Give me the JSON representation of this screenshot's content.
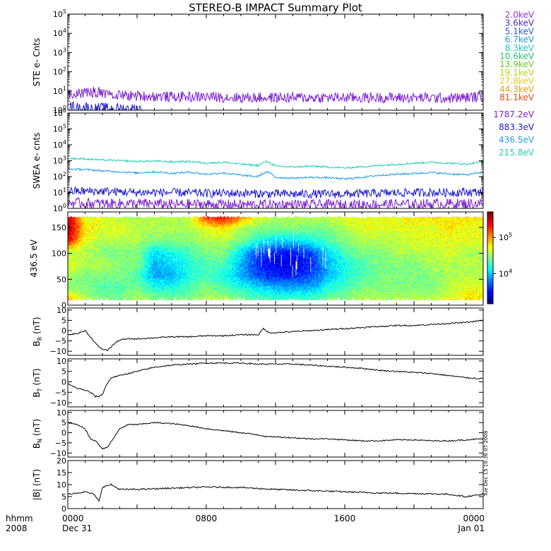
{
  "title": "STEREO-B IMPACT Summary Plot",
  "side_stamp": "Tue Dec 15 10:36:07 2008",
  "time_axis": {
    "row1_label": "hhmm",
    "row2_label": "2008",
    "ticks": [
      {
        "hour": 0,
        "top": "0000",
        "bottom": "Dec 31"
      },
      {
        "hour": 8,
        "top": "0800",
        "bottom": ""
      },
      {
        "hour": 16,
        "top": "1600",
        "bottom": ""
      },
      {
        "hour": 24,
        "top": "0000",
        "bottom": "Jan 01"
      }
    ],
    "range_hours": [
      0,
      24
    ]
  },
  "ste_legend": [
    {
      "label": "2.0keV",
      "color": "#9b30d0"
    },
    {
      "label": "3.6keV",
      "color": "#4b2ac0"
    },
    {
      "label": "5.1keV",
      "color": "#2a55e0"
    },
    {
      "label": "6.7keV",
      "color": "#1f9ae6"
    },
    {
      "label": "8.3keV",
      "color": "#22c8c8"
    },
    {
      "label": "10.6keV",
      "color": "#20c070"
    },
    {
      "label": "13.9keV",
      "color": "#66cc22"
    },
    {
      "label": "19.1keV",
      "color": "#b8d418"
    },
    {
      "label": "27.8keV",
      "color": "#e8c818"
    },
    {
      "label": "44.3keV",
      "color": "#ee9a12"
    },
    {
      "label": "81.1keV",
      "color": "#e04a10"
    }
  ],
  "swea_legend": [
    {
      "label": "1787.2eV",
      "color": "#7a1fd0"
    },
    {
      "label": "883.3eV",
      "color": "#1a1acc"
    },
    {
      "label": "436.5eV",
      "color": "#1f9ae6"
    },
    {
      "label": "215.8eV",
      "color": "#22d0b0"
    }
  ],
  "chart_data": [
    {
      "type": "line",
      "ylabel": "STE e- Cnts",
      "yscale": "log",
      "ylim": [
        1,
        100000
      ],
      "yticks": [
        {
          "v": 1,
          "label": "10^0"
        },
        {
          "v": 10,
          "label": "10^1"
        },
        {
          "v": 100,
          "label": "10^2"
        },
        {
          "v": 1000,
          "label": "10^3"
        },
        {
          "v": 10000,
          "label": "10^4"
        },
        {
          "v": 100000,
          "label": "10^5"
        }
      ],
      "series": [
        {
          "channel": "2.0keV",
          "color": "#7a1fd0",
          "x": [
            0,
            0.5,
            1,
            1.5,
            2,
            3,
            4,
            6,
            8,
            10,
            12,
            14,
            16,
            18,
            20,
            22,
            23,
            24
          ],
          "values": [
            7,
            7.5,
            8.5,
            9,
            8,
            6,
            5.5,
            5,
            5,
            4.5,
            4.5,
            4.5,
            4.5,
            4.5,
            4.5,
            4.2,
            4.5,
            5.2
          ]
        },
        {
          "channel": "3.6keV",
          "color": "#1a1acc",
          "x": [
            0,
            0.3,
            0.6,
            1,
            1.4,
            2,
            2.5,
            3,
            3.5,
            4.3
          ],
          "values": [
            1.4,
            1.6,
            1.3,
            1.5,
            1.2,
            1.3,
            1.2,
            1.25,
            1.2,
            1.2
          ]
        }
      ]
    },
    {
      "type": "line",
      "ylabel": "SWEA e- cnts",
      "yscale": "log",
      "ylim": [
        1,
        1000000
      ],
      "yticks": [
        {
          "v": 1,
          "label": "10^0"
        },
        {
          "v": 10,
          "label": "10^1"
        },
        {
          "v": 100,
          "label": "10^2"
        },
        {
          "v": 1000,
          "label": "10^3"
        },
        {
          "v": 10000,
          "label": "10^4"
        },
        {
          "v": 100000,
          "label": "10^5"
        },
        {
          "v": 1000000,
          "label": "10^6"
        }
      ],
      "series": [
        {
          "channel": "215.8eV",
          "color": "#22d0b0",
          "x": [
            0,
            1,
            2,
            3,
            4,
            5,
            6,
            7,
            8,
            9,
            10,
            11,
            11.5,
            12,
            13,
            14,
            15,
            16,
            17,
            18,
            19,
            20,
            21,
            22,
            23,
            24
          ],
          "values": [
            1400,
            1300,
            1100,
            1000,
            900,
            950,
            850,
            900,
            700,
            800,
            600,
            500,
            900,
            450,
            400,
            450,
            400,
            350,
            420,
            500,
            600,
            700,
            800,
            700,
            600,
            850
          ]
        },
        {
          "channel": "436.5eV",
          "color": "#1f9ae6",
          "x": [
            0,
            1,
            2,
            3,
            4,
            5,
            6,
            7,
            8,
            9,
            10,
            11,
            11.5,
            12,
            13,
            14,
            15,
            16,
            17,
            18,
            19,
            20,
            21,
            22,
            23,
            24
          ],
          "values": [
            300,
            280,
            230,
            200,
            170,
            200,
            160,
            190,
            140,
            170,
            120,
            100,
            200,
            90,
            80,
            90,
            85,
            70,
            90,
            120,
            140,
            160,
            180,
            150,
            130,
            180
          ]
        },
        {
          "channel": "883.3eV",
          "color": "#1a1acc",
          "x": [
            0,
            2,
            4,
            6,
            8,
            10,
            12,
            14,
            16,
            18,
            20,
            22,
            24
          ],
          "values": [
            12,
            12,
            10,
            10,
            9,
            9,
            8,
            8,
            8,
            9,
            10,
            10,
            11
          ]
        },
        {
          "channel": "1787.2eV",
          "color": "#7a1fd0",
          "x": [
            0,
            2,
            4,
            6,
            8,
            10,
            12,
            14,
            16,
            18,
            20,
            22,
            24
          ],
          "values": [
            2.2,
            2,
            2,
            1.8,
            1.8,
            1.7,
            1.7,
            1.7,
            1.7,
            1.8,
            1.8,
            2,
            2
          ]
        }
      ]
    },
    {
      "type": "heatmap",
      "ylabel": "436.5 eV",
      "ylim": [
        0,
        180
      ],
      "yticks": [
        {
          "v": 0,
          "label": "0"
        },
        {
          "v": 50,
          "label": "50"
        },
        {
          "v": 100,
          "label": "100"
        },
        {
          "v": 150,
          "label": "150"
        }
      ],
      "data_band_deg": [
        10,
        170
      ],
      "colorbar": {
        "scale": "log",
        "range": [
          1500,
          500000
        ],
        "ticks": [
          {
            "v": 10000,
            "label": "10^4"
          },
          {
            "v": 100000,
            "label": "10^5"
          }
        ]
      },
      "columns": [
        {
          "t": 0,
          "levels": [
            0.7,
            0.5,
            0.55,
            0.6,
            0.55,
            0.9,
            0.95,
            0.95
          ]
        },
        {
          "t": 1,
          "levels": [
            0.55,
            0.5,
            0.5,
            0.55,
            0.55,
            0.6,
            0.65,
            0.6
          ]
        },
        {
          "t": 2,
          "levels": [
            0.5,
            0.45,
            0.5,
            0.55,
            0.5,
            0.55,
            0.6,
            0.6
          ]
        },
        {
          "t": 3,
          "levels": [
            0.5,
            0.45,
            0.5,
            0.5,
            0.5,
            0.55,
            0.6,
            0.55
          ]
        },
        {
          "t": 4,
          "levels": [
            0.55,
            0.5,
            0.45,
            0.5,
            0.5,
            0.55,
            0.55,
            0.55
          ]
        },
        {
          "t": 5,
          "levels": [
            0.5,
            0.4,
            0.3,
            0.3,
            0.35,
            0.5,
            0.55,
            0.55
          ]
        },
        {
          "t": 6,
          "levels": [
            0.5,
            0.4,
            0.3,
            0.35,
            0.4,
            0.5,
            0.55,
            0.55
          ]
        },
        {
          "t": 7,
          "levels": [
            0.5,
            0.45,
            0.4,
            0.4,
            0.45,
            0.5,
            0.55,
            0.55
          ]
        },
        {
          "t": 8,
          "levels": [
            0.55,
            0.5,
            0.45,
            0.45,
            0.5,
            0.55,
            0.6,
            0.85
          ]
        },
        {
          "t": 9,
          "levels": [
            0.55,
            0.45,
            0.4,
            0.45,
            0.5,
            0.55,
            0.65,
            0.9
          ]
        },
        {
          "t": 10,
          "levels": [
            0.5,
            0.4,
            0.3,
            0.3,
            0.35,
            0.5,
            0.55,
            0.75
          ]
        },
        {
          "t": 11,
          "levels": [
            0.45,
            0.35,
            0.2,
            0.15,
            0.2,
            0.4,
            0.5,
            0.6
          ]
        },
        {
          "t": 12,
          "levels": [
            0.45,
            0.3,
            0.15,
            0.1,
            0.15,
            0.35,
            0.5,
            0.55
          ]
        },
        {
          "t": 13,
          "levels": [
            0.45,
            0.3,
            0.15,
            0.1,
            0.15,
            0.35,
            0.5,
            0.55
          ]
        },
        {
          "t": 14,
          "levels": [
            0.45,
            0.3,
            0.2,
            0.15,
            0.2,
            0.4,
            0.5,
            0.55
          ]
        },
        {
          "t": 15,
          "levels": [
            0.5,
            0.4,
            0.3,
            0.3,
            0.35,
            0.45,
            0.5,
            0.55
          ]
        },
        {
          "t": 16,
          "levels": [
            0.5,
            0.45,
            0.4,
            0.4,
            0.45,
            0.5,
            0.55,
            0.6
          ]
        },
        {
          "t": 17,
          "levels": [
            0.55,
            0.5,
            0.45,
            0.45,
            0.5,
            0.55,
            0.6,
            0.6
          ]
        },
        {
          "t": 18,
          "levels": [
            0.55,
            0.5,
            0.5,
            0.5,
            0.5,
            0.55,
            0.6,
            0.6
          ]
        },
        {
          "t": 19,
          "levels": [
            0.55,
            0.5,
            0.5,
            0.5,
            0.55,
            0.55,
            0.6,
            0.6
          ]
        },
        {
          "t": 20,
          "levels": [
            0.55,
            0.5,
            0.5,
            0.5,
            0.55,
            0.6,
            0.6,
            0.65
          ]
        },
        {
          "t": 21,
          "levels": [
            0.55,
            0.5,
            0.5,
            0.55,
            0.55,
            0.6,
            0.6,
            0.65
          ]
        },
        {
          "t": 22,
          "levels": [
            0.6,
            0.55,
            0.55,
            0.55,
            0.6,
            0.6,
            0.65,
            0.65
          ]
        },
        {
          "t": 23,
          "levels": [
            0.65,
            0.6,
            0.55,
            0.55,
            0.55,
            0.6,
            0.6,
            0.65
          ]
        }
      ]
    },
    {
      "type": "line",
      "ylabel": "B_R (nT)",
      "ylim": [
        -12,
        11
      ],
      "yticks": [
        {
          "v": -10,
          "label": "−10"
        },
        {
          "v": -5,
          "label": "−5"
        },
        {
          "v": 0,
          "label": "0"
        },
        {
          "v": 5,
          "label": "5"
        },
        {
          "v": 10,
          "label": "10"
        }
      ],
      "x": [
        0,
        0.5,
        1,
        1.3,
        1.6,
        1.8,
        2,
        2.3,
        2.6,
        3,
        3.5,
        4,
        5,
        6,
        7,
        8,
        9,
        10,
        11,
        11.3,
        11.6,
        12,
        13,
        14,
        15,
        16,
        17,
        18,
        19,
        20,
        21,
        22,
        23,
        24
      ],
      "values": [
        -2,
        -1.5,
        0,
        -3,
        -6,
        -8,
        -9,
        -9.5,
        -7,
        -4.5,
        -4,
        -4,
        -3.5,
        -3,
        -3,
        -2.5,
        -2.5,
        -2,
        -2,
        1,
        -1,
        -1,
        -0.5,
        0,
        0.5,
        1,
        1.5,
        2,
        2.5,
        2.5,
        3,
        3.5,
        4,
        5
      ]
    },
    {
      "type": "line",
      "ylabel": "B_T (nT)",
      "ylim": [
        -12,
        11
      ],
      "yticks": [
        {
          "v": -10,
          "label": "−10"
        },
        {
          "v": -5,
          "label": "−5"
        },
        {
          "v": 0,
          "label": "0"
        },
        {
          "v": 5,
          "label": "5"
        },
        {
          "v": 10,
          "label": "10"
        }
      ],
      "x": [
        0,
        0.5,
        1,
        1.3,
        1.6,
        1.8,
        2,
        2.2,
        2.5,
        3,
        4,
        5,
        6,
        7,
        8,
        9,
        10,
        11,
        12,
        13,
        14,
        15,
        16,
        17,
        18,
        19,
        20,
        21,
        22,
        23,
        24
      ],
      "values": [
        -1,
        -3,
        -4,
        -5,
        -7,
        -7,
        -6,
        -2,
        2,
        3,
        5,
        7,
        8,
        8.5,
        9,
        9,
        9,
        8.5,
        8.5,
        8.5,
        8,
        7.5,
        7,
        6.5,
        5.5,
        5,
        4.5,
        4,
        3,
        2,
        1.5
      ]
    },
    {
      "type": "line",
      "ylabel": "B_N (nT)",
      "ylim": [
        -12,
        11
      ],
      "yticks": [
        {
          "v": -10,
          "label": "−10"
        },
        {
          "v": -5,
          "label": "−5"
        },
        {
          "v": 0,
          "label": "0"
        },
        {
          "v": 5,
          "label": "5"
        },
        {
          "v": 10,
          "label": "10"
        }
      ],
      "x": [
        0,
        0.5,
        1,
        1.3,
        1.6,
        1.8,
        2,
        2.3,
        2.7,
        3,
        3.5,
        4,
        5,
        6,
        7,
        8,
        9,
        10,
        11,
        11.5,
        12,
        13,
        14,
        15,
        16,
        17,
        18,
        19,
        20,
        21,
        22,
        23,
        24
      ],
      "values": [
        5,
        4,
        2,
        -3,
        -4,
        -6,
        -8,
        -7,
        -2,
        2,
        4,
        4,
        5,
        4.5,
        3.5,
        2,
        1,
        0,
        -1,
        -2,
        -2,
        -2.5,
        -3,
        -3,
        -3.5,
        -4,
        -4,
        -3.5,
        -3.5,
        -4,
        -4,
        -3.5,
        -3
      ]
    },
    {
      "type": "line",
      "ylabel": "|B| (nT)",
      "ylim": [
        0,
        20
      ],
      "yticks": [
        {
          "v": 0,
          "label": "0"
        },
        {
          "v": 5,
          "label": "5"
        },
        {
          "v": 10,
          "label": "10"
        },
        {
          "v": 15,
          "label": "15"
        },
        {
          "v": 20,
          "label": "20"
        }
      ],
      "x": [
        0,
        0.5,
        1,
        1.5,
        1.8,
        2,
        2.5,
        3,
        4,
        6,
        8,
        10,
        12,
        14,
        16,
        18,
        20,
        22,
        23,
        24
      ],
      "values": [
        6,
        6.5,
        7,
        6,
        3,
        9,
        10,
        8,
        8,
        8.5,
        9,
        8.8,
        8,
        7.5,
        7,
        6.5,
        6.3,
        6,
        5,
        6
      ]
    }
  ]
}
